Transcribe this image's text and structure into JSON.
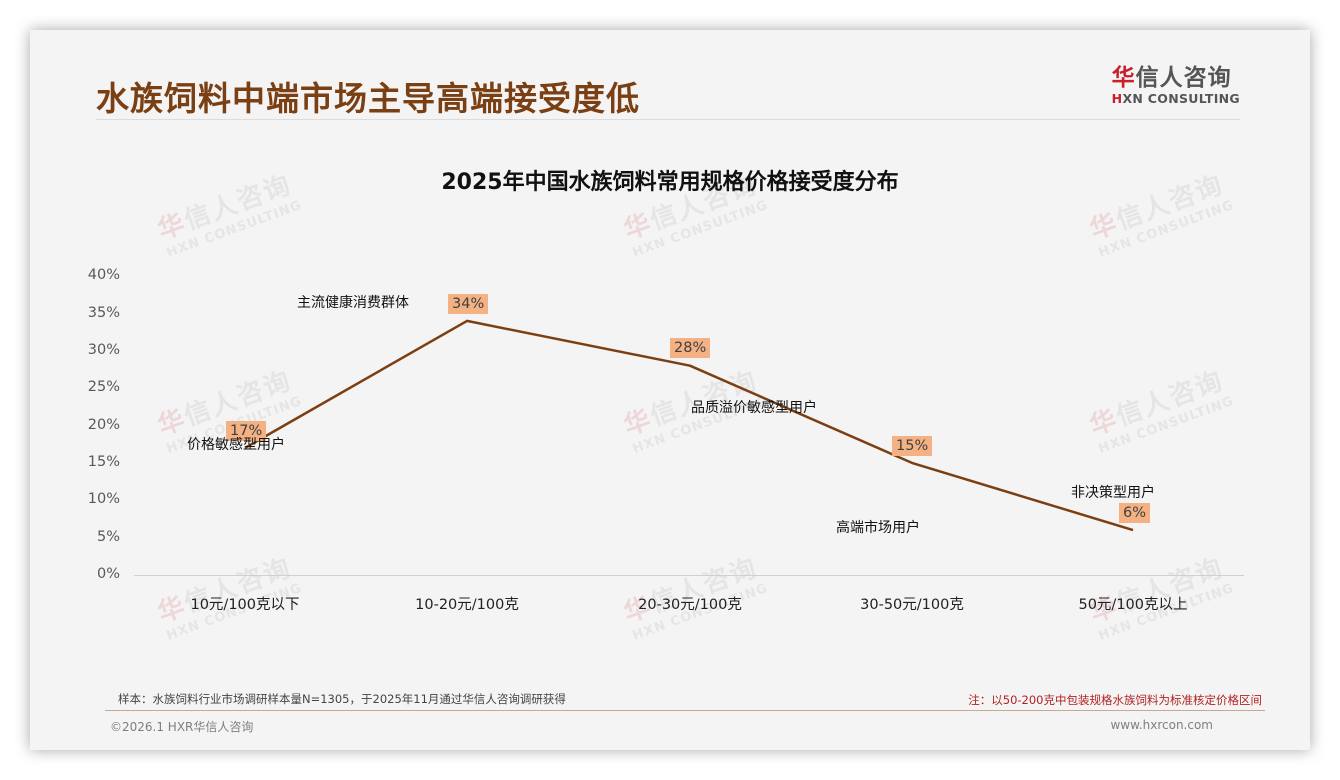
{
  "header": {
    "title": "水族饲料中端市场主导高端接受度低",
    "logo_cn_accent": "华",
    "logo_cn_rest": "信人咨询",
    "logo_en_accent": "H",
    "logo_en_rest": "XN CONSULTING"
  },
  "watermark": {
    "cn_accent": "华",
    "cn_rest": "信人咨询",
    "en": "HXN CONSULTING"
  },
  "colors": {
    "title": "#7a3f12",
    "line": "#7b3f12",
    "label_bg": "#f4b183",
    "note": "#b22222",
    "brand_red": "#c8202a"
  },
  "chart_data": {
    "type": "line",
    "title": "2025年中国水族饲料常用规格价格接受度分布",
    "xlabel": "",
    "ylabel": "",
    "categories": [
      "10元/100克以下",
      "10-20元/100克",
      "20-30元/100克",
      "30-50元/100克",
      "50元/100克以上"
    ],
    "values": [
      17,
      34,
      28,
      15,
      6
    ],
    "value_labels": [
      "17%",
      "34%",
      "28%",
      "15%",
      "6%"
    ],
    "annotations": [
      "价格敏感型用户",
      "主流健康消费群体",
      "品质溢价敏感型用户",
      "高端市场用户",
      "非决策型用户"
    ],
    "ylim": [
      0,
      40
    ],
    "y_ticks": [
      "0%",
      "5%",
      "10%",
      "15%",
      "20%",
      "25%",
      "30%",
      "35%",
      "40%"
    ],
    "grid": false,
    "legend": "none"
  },
  "footer": {
    "source": "样本：水族饲料行业市场调研样本量N=1305，于2025年11月通过华信人咨询调研获得",
    "note": "注：以50-200克中包装规格水族饲料为标准核定价格区间",
    "copyright": "©2026.1 HXR华信人咨询",
    "website": "www.hxrcon.com"
  }
}
